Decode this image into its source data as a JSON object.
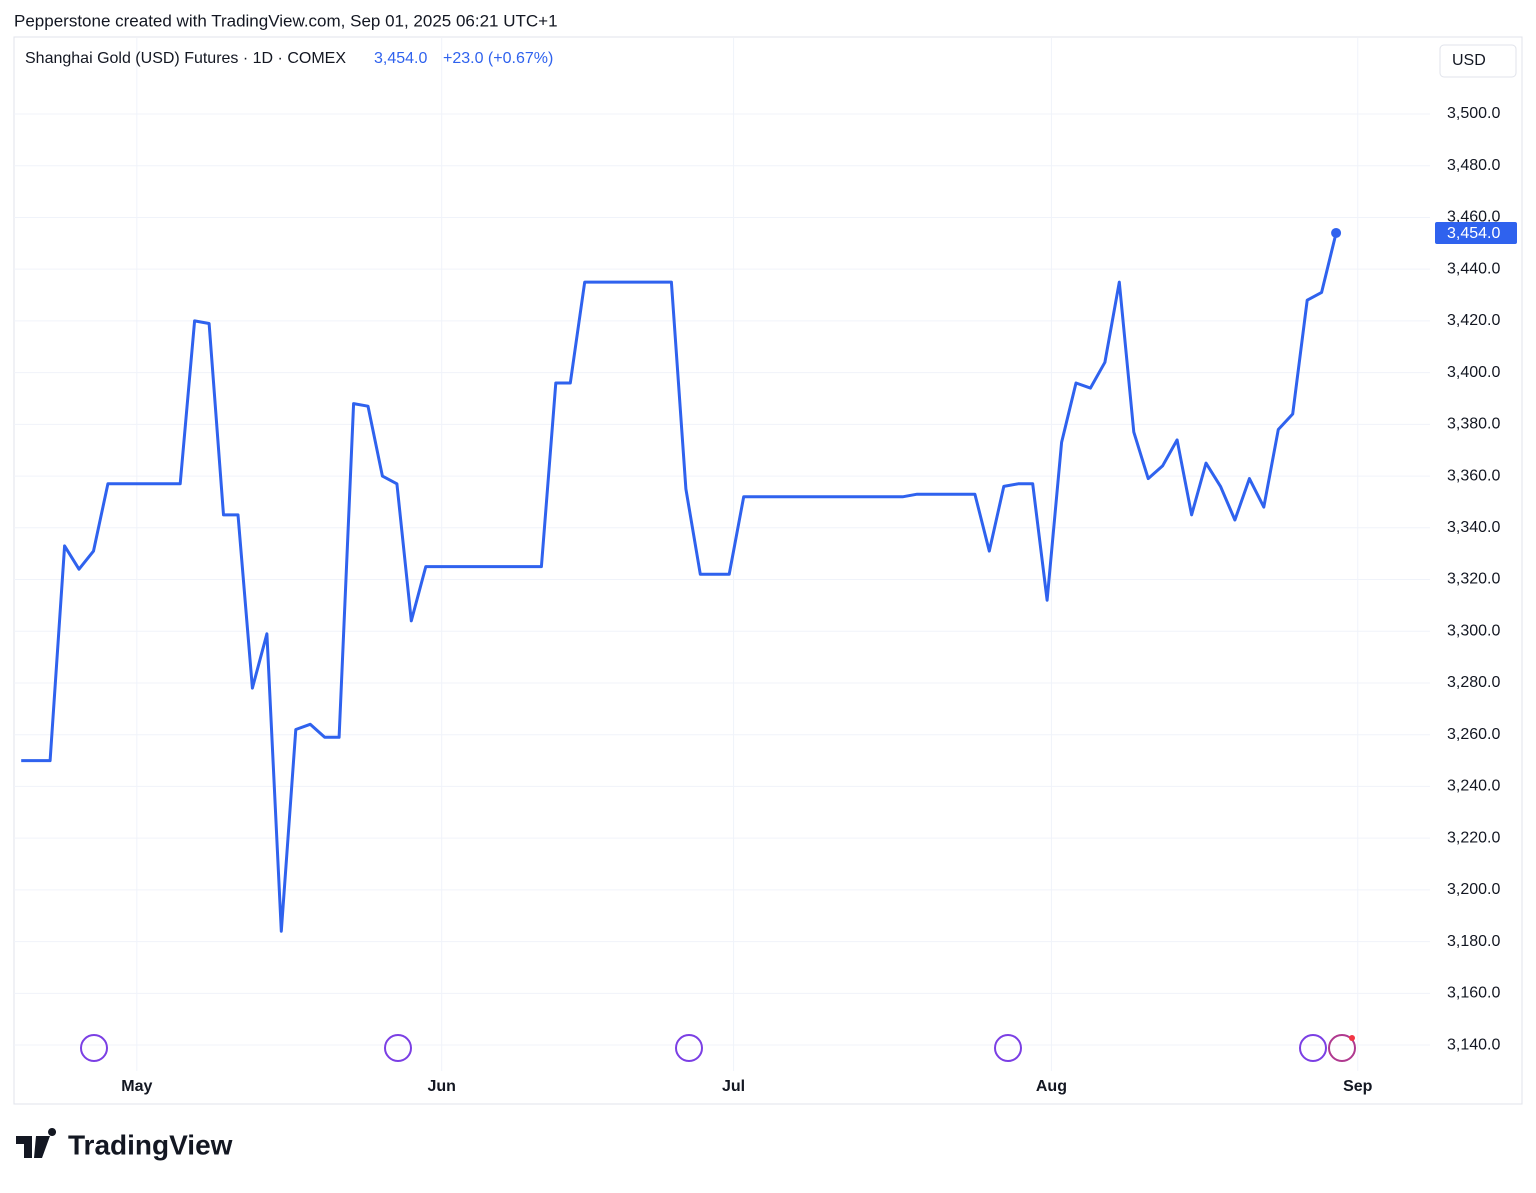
{
  "header": {
    "attribution": "Pepperstone created with TradingView.com, Sep 01, 2025 06:21 UTC+1",
    "logo": "TradingView"
  },
  "chart_data": {
    "type": "line",
    "title": "Shanghai Gold (USD) Futures · 1D · COMEX",
    "price": "3,454.0",
    "change": "+23.0 (+0.67%)",
    "currency": "USD",
    "color": "#2f62ee",
    "grid": true,
    "values": [
      3250,
      3250,
      3250,
      3333,
      3324,
      3331,
      3357,
      3357,
      3357,
      3357,
      3357,
      3357,
      3420,
      3419,
      3345,
      3345,
      3278,
      3299,
      3184,
      3262,
      3264,
      3259,
      3259,
      3388,
      3387,
      3360,
      3357,
      3304,
      3325,
      3325,
      3325,
      3325,
      3325,
      3325,
      3325,
      3325,
      3325,
      3396,
      3396,
      3435,
      3435,
      3435,
      3435,
      3435,
      3435,
      3435,
      3355,
      3322,
      3322,
      3322,
      3352,
      3352,
      3352,
      3352,
      3352,
      3352,
      3352,
      3352,
      3352,
      3352,
      3352,
      3352,
      3353,
      3353,
      3353,
      3353,
      3353,
      3331,
      3356,
      3357,
      3357,
      3312,
      3373,
      3396,
      3394,
      3404,
      3435,
      3377,
      3359,
      3364,
      3374,
      3345,
      3365,
      3356,
      3343,
      3359,
      3348,
      3378,
      3384,
      3428,
      3431,
      3454
    ],
    "xlim": [
      -0.5,
      97.5
    ],
    "xticks": [
      {
        "value": 8,
        "label": "May"
      },
      {
        "value": 29.1,
        "label": "Jun"
      },
      {
        "value": 49.3,
        "label": "Jul"
      },
      {
        "value": 71.3,
        "label": "Aug"
      },
      {
        "value": 92.5,
        "label": "Sep"
      }
    ],
    "ylim": [
      3130,
      3530
    ],
    "yticks": [
      {
        "value": 3140,
        "label": "3,140.0"
      },
      {
        "value": 3160,
        "label": "3,160.0"
      },
      {
        "value": 3180,
        "label": "3,180.0"
      },
      {
        "value": 3200,
        "label": "3,200.0"
      },
      {
        "value": 3220,
        "label": "3,220.0"
      },
      {
        "value": 3240,
        "label": "3,240.0"
      },
      {
        "value": 3260,
        "label": "3,260.0"
      },
      {
        "value": 3280,
        "label": "3,280.0"
      },
      {
        "value": 3300,
        "label": "3,300.0"
      },
      {
        "value": 3320,
        "label": "3,320.0"
      },
      {
        "value": 3340,
        "label": "3,340.0"
      },
      {
        "value": 3360,
        "label": "3,360.0"
      },
      {
        "value": 3380,
        "label": "3,380.0"
      },
      {
        "value": 3400,
        "label": "3,400.0"
      },
      {
        "value": 3420,
        "label": "3,420.0"
      },
      {
        "value": 3440,
        "label": "3,440.0"
      },
      {
        "value": 3460,
        "label": "3,460.0"
      },
      {
        "value": 3480,
        "label": "3,480.0"
      },
      {
        "value": 3500,
        "label": "3,500.0"
      }
    ]
  }
}
